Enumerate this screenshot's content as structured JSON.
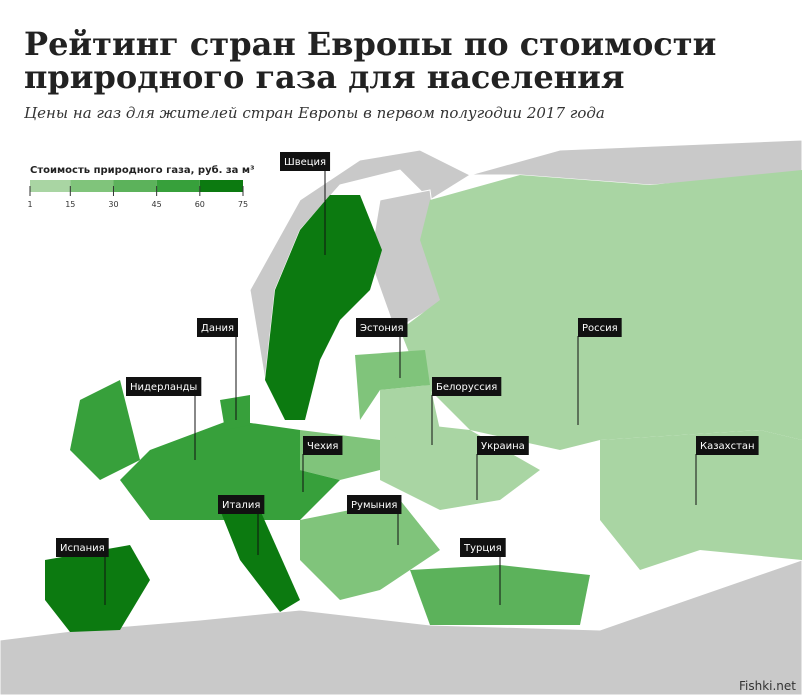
{
  "header": {
    "title_line1": "Рейтинг стран Европы по стоимости",
    "title_line2": "природного газа для населения",
    "subtitle": "Цены на газ для жителей стран Европы в первом полугодии 2017 года"
  },
  "legend": {
    "title": "Стоимость природного газа, руб. за м³",
    "ticks": [
      1,
      15,
      30,
      45,
      60,
      75
    ],
    "colors": [
      "#a9d5a3",
      "#80c47b",
      "#5cb25b",
      "#37a03b",
      "#0c7a10"
    ]
  },
  "map_labels": [
    "Швеция",
    "Дания",
    "Нидерланды",
    "Эстония",
    "Белоруссия",
    "Россия",
    "Чехия",
    "Украина",
    "Казахстан",
    "Италия",
    "Румыния",
    "Испания",
    "Турция"
  ],
  "watermark": "Fishki.net"
}
